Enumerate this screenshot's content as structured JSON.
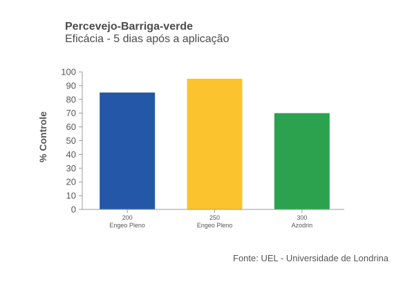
{
  "chart_data": {
    "type": "bar",
    "title": "Percevejo-Barriga-verde",
    "subtitle": "Eficácia - 5 dias após a aplicação",
    "xlabel": "",
    "ylabel": "% Controle",
    "ylim": [
      0,
      100
    ],
    "yticks": [
      "0",
      "10",
      "20",
      "30",
      "40",
      "50",
      "60",
      "70",
      "80",
      "90",
      "100"
    ],
    "categories": [
      {
        "line1": "200",
        "line2": "Engeo Pleno"
      },
      {
        "line1": "250",
        "line2": "Engeo Pleno"
      },
      {
        "line1": "300",
        "line2": "Azodrin"
      }
    ],
    "values": [
      85,
      95,
      70
    ],
    "colors": [
      "#2457a8",
      "#fbc42f",
      "#2ca24f"
    ],
    "grid": false,
    "legend": "none"
  },
  "source": "Fonte: UEL -  Universidade de Londrina"
}
